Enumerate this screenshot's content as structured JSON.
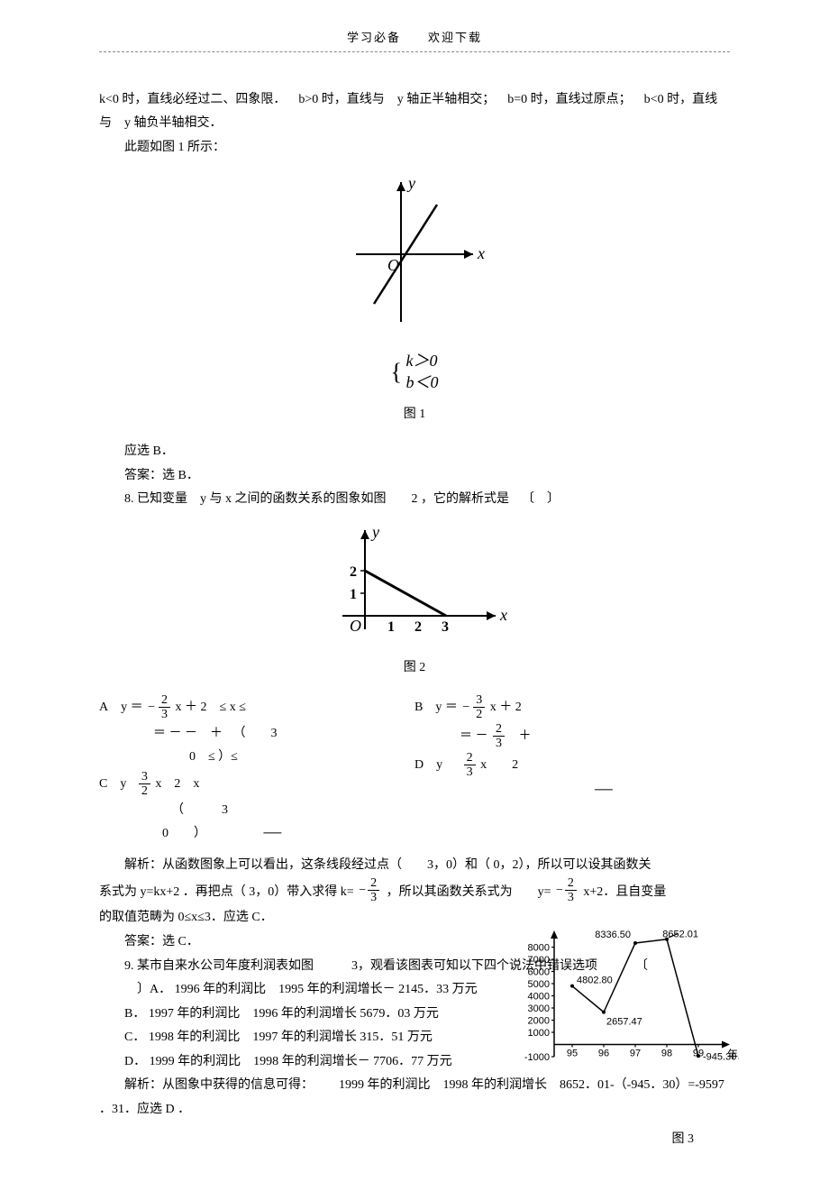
{
  "header": "学习必备  欢迎下载",
  "p1": "k<0 时，直线必经过二、四象限． b>0 时，直线与 y 轴正半轴相交； b=0 时，直线过原点； b<0 时，直线与 y 轴负半轴相交．",
  "p2": "此题如图 1 所示：",
  "fig1_caption": "图 1",
  "fig1": {
    "x_label": "x",
    "y_label": "y",
    "origin": "O",
    "cond1": "k＞0",
    "cond2": "b＜0",
    "line_color": "#000000"
  },
  "p3": "应选 B．",
  "p4": "答案：选 B．",
  "q8_stem": "8. 已知变量 y 与 x 之间的函数关系的图象如图  2 ，它的解析式是 〔 〕",
  "fig2_caption": "图 2",
  "fig2": {
    "x_label": "x",
    "y_label": "y",
    "origin": "O",
    "xticks": [
      "1",
      "2",
      "3"
    ],
    "yticks": [
      "1",
      "2"
    ]
  },
  "q8_A_lead": "A y",
  "q8_A_rest": "x ＋ 2 ≤ x ≤",
  "q8_A_line2_a": "＝ － － ＋",
  "q8_A_line2_b": "（  3",
  "q8_A_line3": "0 ≤ ）≤",
  "q8_B_lead": "B y",
  "q8_B_rest": "x ＋ 2",
  "q8_B_line2": "＝ －",
  "q8_B_line3": "＋",
  "q8_C_lead": "C y",
  "q8_C_rest": "x 2 x",
  "q8_C_line2": "（   3",
  "q8_C_line3": "0  ）",
  "q8_D_lead": "D y",
  "q8_D_rest": "x  2",
  "q8_ana_a": "解析：从函数图象上可以看出，这条线段经过点（  3，0）和（ 0，2），所以可以设其函数关",
  "q8_ana_b_a": "系式为 y=kx+2 ．再把点（ 3，0）带入求得 k= ",
  "q8_ana_b_b": " ，所以其函数关系式为  y= ",
  "q8_ana_b_c": " x+2．且自变量",
  "q8_ana_c": "的取值范畴为 0≤x≤3．应选 C．",
  "q8_ans": "答案：选 C．",
  "q9_stem_a": "9. 某市自来水公司年度利润表如图   3，观看该图表可知以下四个说法中错误选项   〔",
  "q9_stem_b": "〕A． 1996 年的利润比 1995 年的利润增长－ 2145．33 万元",
  "q9_B": "B． 1997 年的利润比 1996 年的利润增长 5679．03 万元",
  "q9_C": "C． 1998 年的利润比 1997 年的利润增长 315．51 万元",
  "q9_D": "D． 1999 年的利润比 1998 年的利润增长－ 7706．77 万元",
  "q9_ana": "解析：从图象中获得的信息可得：  1999 年的利润比 1998 年的利润增长 8652．01-（-945．30）=-9597 ．31．应选 D ．",
  "fig3_caption": "图 3",
  "chart3": {
    "type": "line",
    "yticks": [
      "-1000",
      "1000",
      "2000",
      "3000",
      "4000",
      "5000",
      "6000",
      "7000",
      "8000"
    ],
    "xticks": [
      "95",
      "96",
      "97",
      "98",
      "99"
    ],
    "xlabel": "年度",
    "points": [
      {
        "x": "95",
        "y": 4802.8,
        "label": "4802.80"
      },
      {
        "x": "96",
        "y": 2657.47,
        "label": "2657.47"
      },
      {
        "x": "97",
        "y": 8336.5,
        "label": "8336.50"
      },
      {
        "x": "98",
        "y": 8652.01,
        "label": "8652.01"
      },
      {
        "x": "99",
        "y": -945.3,
        "label": "-945.30"
      }
    ],
    "axis_color": "#000000",
    "line_color": "#000000",
    "text_color": "#000000",
    "fontsize": 11
  },
  "frac_2_3_neg": {
    "sign": "−",
    "n": "2",
    "d": "3"
  },
  "frac_3_2_neg": {
    "sign": "−",
    "n": "3",
    "d": "2"
  },
  "frac_3_2": {
    "n": "3",
    "d": "2"
  },
  "frac_2_3": {
    "n": "2",
    "d": "3"
  },
  "frac_2_3b": {
    "n": "2",
    "d": "3"
  },
  "frac_2_3c": {
    "n": "2",
    "d": "3"
  },
  "frac_2_3d": {
    "n": "2",
    "d": "3"
  },
  "dash": "──",
  "dash2": "──"
}
